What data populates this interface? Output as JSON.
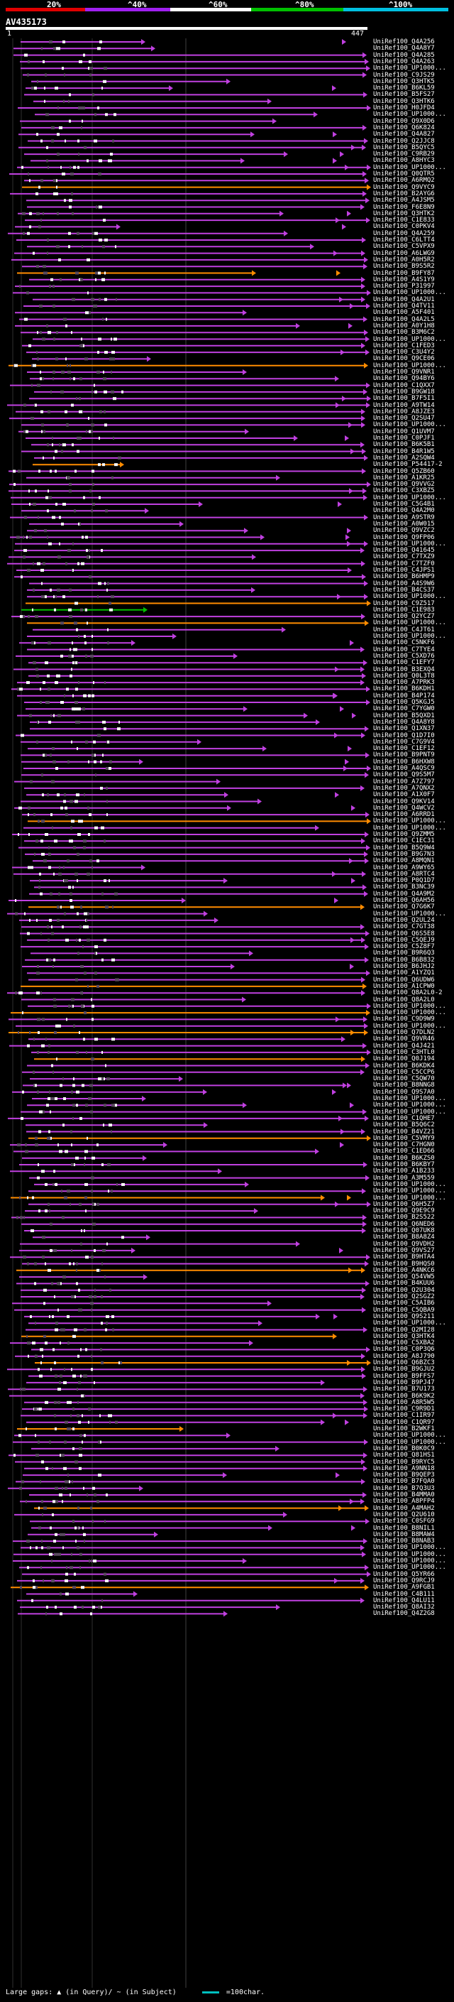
{
  "legend": {
    "labels": [
      "20%",
      "^40%",
      "^60%",
      "^80%",
      "^100%"
    ],
    "colors": [
      "#e00000",
      "#a020f0",
      "#ffffff",
      "#00c000",
      "#00c0e0"
    ]
  },
  "query": {
    "title": "AV435173",
    "start": "1",
    "end": "447"
  },
  "hits": [
    "UniRef100_Q4A256",
    "UniRef100_Q4A8Y7",
    "UniRef100_Q4A285",
    "UniRef100_Q4A263",
    "UniRef100_UP1000...",
    "UniRef100_C9JS29",
    "UniRef100_Q3HTK5",
    "UniRef100_B6KL59",
    "UniRef100_B5FS27",
    "UniRef100_Q3HTK6",
    "UniRef100_H0JFD4",
    "UniRef100_UP1000...",
    "UniRef100_Q9X0D6",
    "UniRef100_Q6K824",
    "UniRef100_Q4A827",
    "UniRef100_Q2JJC8",
    "UniRef100_B5QYC5",
    "UniRef100_C9RB29",
    "UniRef100_A8HYC3",
    "UniRef100_UP1000...",
    "UniRef100_Q0QTR5",
    "UniRef100_A6RMQ2",
    "UniRef100_Q9VYC9",
    "UniRef100_B2AYG6",
    "UniRef100_A4JSM5",
    "UniRef100_F6E8N9",
    "UniRef100_Q3HTK2",
    "UniRef100_C1E833",
    "UniRef100_C0PKV4",
    "UniRef100_Q4A259",
    "UniRef100_C6LTT4",
    "UniRef100_C5VPX9",
    "UniRef100_A6LWG9",
    "UniRef100_A0H5R2",
    "UniRef100_B9S5R2",
    "UniRef100_B9FY87",
    "UniRef100_A4S1Y9",
    "UniRef100_P31997",
    "UniRef100_UP1000...",
    "UniRef100_Q4A2U1",
    "UniRef100_Q4TV11",
    "UniRef100_A5F401",
    "UniRef100_Q4A2L5",
    "UniRef100_A0Y1H8",
    "UniRef100_B3M6C2",
    "UniRef100_UP1000...",
    "UniRef100_C1FED3",
    "UniRef100_C3U4Y2",
    "UniRef100_Q9CE06",
    "UniRef100_UP1000...",
    "UniRef100_Q9VNR1",
    "UniRef100_Q94BY6",
    "UniRef100_C1QXX7",
    "UniRef100_B9GW18",
    "UniRef100_B7F5I1",
    "UniRef100_A9TW14",
    "UniRef100_A8JZE3",
    "UniRef100_Q2SU47",
    "UniRef100_UP1000...",
    "UniRef100_Q1UVM7",
    "UniRef100_C0PJF1",
    "UniRef100_B6K5B1",
    "UniRef100_B4R1W5",
    "UniRef100_A2SQW4",
    "UniRef100_P54417-2",
    "UniRef100_Q5ZB60",
    "UniRef100_A1KR25",
    "UniRef100_Q9VVG2",
    "UniRef100_C3XBZ5",
    "UniRef100_UP1000...",
    "UniRef100_C5G4B1",
    "UniRef100_Q4A2M0",
    "UniRef100_A9STR9",
    "UniRef100_A0W015",
    "UniRef100_Q9VZC2",
    "UniRef100_Q9FP06",
    "UniRef100_UP1000...",
    "UniRef100_Q41645",
    "UniRef100_C7TXZ9",
    "UniRef100_C7TZF0",
    "UniRef100_C4JPS1",
    "UniRef100_B6HMP9",
    "UniRef100_A4S9W6",
    "UniRef100_B4CS37",
    "UniRef100_UP1000...",
    "UniRef100_C9Z517",
    "UniRef100_C1E983",
    "UniRef100_Q2YCZ7",
    "UniRef100_UP1000...",
    "UniRef100_C4JT61",
    "UniRef100_UP1000...",
    "UniRef100_C5NKF6",
    "UniRef100_C7TYE4",
    "UniRef100_C5XD76",
    "UniRef100_C1EFY7",
    "UniRef100_B3EXQ4",
    "UniRef100_Q0L3T8",
    "UniRef100_A7PRK3",
    "UniRef100_B6KDH1",
    "UniRef100_B4P174",
    "UniRef100_Q5KGJ5",
    "UniRef100_C7YGW0",
    "UniRef100_B5QXD1",
    "UniRef100_Q4A8Y8",
    "UniRef100_Q1XN37",
    "UniRef100_Q1D7I0",
    "UniRef100_C7G9V4",
    "UniRef100_C1EF12",
    "UniRef100_B9PNT9",
    "UniRef100_B6HXW8",
    "UniRef100_A4QSC9",
    "UniRef100_Q9S5M7",
    "UniRef100_A7Z797",
    "UniRef100_A7QNX2",
    "UniRef100_A1X0F7",
    "UniRef100_Q9KV14",
    "UniRef100_Q4WCV2",
    "UniRef100_A6RRD1",
    "UniRef100_UP1000...",
    "UniRef100_UP1000...",
    "UniRef100_Q9ZMM5",
    "UniRef100_C1EC31",
    "UniRef100_B5Q9W4",
    "UniRef100_B9G7N3",
    "UniRef100_A8MQN1",
    "UniRef100_A9WY65",
    "UniRef100_A8RTC4",
    "UniRef100_P0Q1D7",
    "UniRef100_B3NC39",
    "UniRef100_Q4A9M2",
    "UniRef100_Q6AH56",
    "UniRef100_Q7G6K7",
    "UniRef100_UP1000...",
    "UniRef100_Q2UL24",
    "UniRef100_C7GT38",
    "UniRef100_Q6S5E8",
    "UniRef100_C5QEJ9",
    "UniRef100_C5Z8F7",
    "UniRef100_B9R6Q3",
    "UniRef100_B6B832",
    "UniRef100_B6JHJ2",
    "UniRef100_A1YZQ1",
    "UniRef100_Q6UDW6",
    "UniRef100_A1CPW0",
    "UniRef100_Q8A2L0-2",
    "UniRef100_Q8A2L0",
    "UniRef100_UP1000...",
    "UniRef100_UP1000...",
    "UniRef100_C9D9W9",
    "UniRef100_UP1000...",
    "UniRef100_Q7DLN2",
    "UniRef100_Q9VR46",
    "UniRef100_Q4J421",
    "UniRef100_C3HTL0",
    "UniRef100_Q0J194",
    "UniRef100_B6KDK4",
    "UniRef100_C5CCP6",
    "UniRef100_C5QW70",
    "UniRef100_B8NNG8",
    "UniRef100_Q9S7A0",
    "UniRef100_UP1000...",
    "UniRef100_UP1000...",
    "UniRef100_UP1000...",
    "UniRef100_C1QHE7",
    "UniRef100_B5Q6C2",
    "UniRef100_B4VZ21",
    "UniRef100_C5VMY9",
    "UniRef100_C7HGN0",
    "UniRef100_C1ED66",
    "UniRef100_B6KZS0",
    "UniRef100_B6KBY7",
    "UniRef100_A1B233",
    "UniRef100_A3M559",
    "UniRef100_UP1000...",
    "UniRef100_UP1000...",
    "UniRef100_UP1000...",
    "UniRef100_Q6H5Z7",
    "UniRef100_Q9E9C9",
    "UniRef100_B2S522",
    "UniRef100_Q6NED6",
    "UniRef100_Q07UK8",
    "UniRef100_B8A8Z4",
    "UniRef100_Q9VDH2",
    "UniRef100_Q9VS27",
    "UniRef100_B9HTA4",
    "UniRef100_B9HQS0",
    "UniRef100_A4NKC6",
    "UniRef100_Q54VW5",
    "UniRef100_B4KUU6",
    "UniRef100_Q2U304",
    "UniRef100_Q2SGZ2",
    "UniRef100_C5AIB6",
    "UniRef100_C5QBA9",
    "UniRef100_Q9S211",
    "UniRef100_UP1000...",
    "UniRef100_Q2MI28",
    "UniRef100_Q3HTK4",
    "UniRef100_C5XBA2",
    "UniRef100_C0P3Q6",
    "UniRef100_A8J790",
    "UniRef100_Q6BZC3",
    "UniRef100_B9GJU2",
    "UniRef100_B9FFS7",
    "UniRef100_B9PJ47",
    "UniRef100_B7U173",
    "UniRef100_B6K9K2",
    "UniRef100_A8R5W5",
    "UniRef100_C9R9D1",
    "UniRef100_C1IR97",
    "UniRef100_C1QR97",
    "UniRef100_B2WKF1",
    "UniRef100_UP1000...",
    "UniRef100_UP1000...",
    "UniRef100_B0K0C9",
    "UniRef100_Q81HS1",
    "UniRef100_B9RYC5",
    "UniRef100_A9NN18",
    "UniRef100_B9QEP3",
    "UniRef100_B7FQA0",
    "UniRef100_B7Q3U3",
    "UniRef100_B4MMA0",
    "UniRef100_A8PFP4",
    "UniRef100_A4MAH2",
    "UniRef100_Q2U610",
    "UniRef100_C0SFG9",
    "UniRef100_B8NIL1",
    "UniRef100_B8MAW4",
    "UniRef100_B8NAB3",
    "UniRef100_UP1000...",
    "UniRef100_UP1000...",
    "UniRef100_UP1000...",
    "UniRef100_UP1000...",
    "UniRef100_Q5YR66",
    "UniRef100_Q9RCJ9",
    "UniRef100_A9FGB1",
    "UniRef100_C4B111",
    "UniRef100_Q4LU11",
    "UniRef100_Q8AI32",
    "UniRef100_Q4Z2G8"
  ],
  "footer": {
    "gaps_label": "Large gaps: ▲ (in Query)/ ~ (in Subject)",
    "scale_label": "=100char."
  }
}
